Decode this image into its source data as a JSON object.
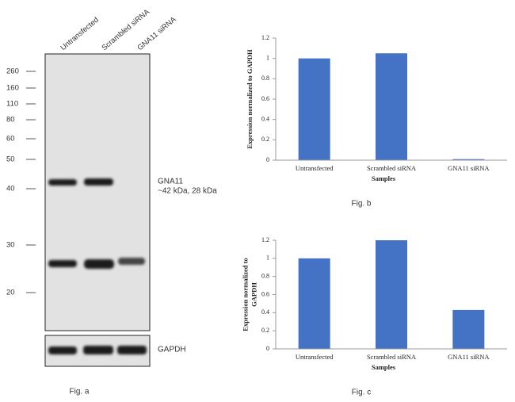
{
  "blot": {
    "lanes": [
      "Untransfected",
      "Scrambled siRNA",
      "GNA11 siRNA"
    ],
    "markers": [
      260,
      160,
      110,
      80,
      60,
      50,
      40,
      30,
      20
    ],
    "band_label": "GNA11",
    "band_size": "~42 kDa, 28 kDa",
    "control_label": "GAPDH",
    "caption": "Fig. a"
  },
  "chart_data": [
    {
      "type": "bar",
      "caption": "Fig. b",
      "ylabel": [
        "Expression  normalized to GAPDH"
      ],
      "xlabel": "Samples",
      "categories": [
        "Untransfected",
        "Scrambled siRNA",
        "GNA11 siRNA"
      ],
      "values": [
        1,
        1.05,
        0.01
      ],
      "color": "#4472c4",
      "ylim": [
        0,
        1.2
      ],
      "yticks": [
        0,
        0.2,
        0.4,
        0.6,
        0.8,
        1,
        1.2
      ]
    },
    {
      "type": "bar",
      "caption": "Fig. c",
      "ylabel": [
        "Expression  normalized to",
        "GAPDH"
      ],
      "xlabel": "Samples",
      "categories": [
        "Untransfected",
        "Scrambled siRNA",
        "GNA11 siRNA"
      ],
      "values": [
        1,
        1.2,
        0.43
      ],
      "color": "#4472c4",
      "ylim": [
        0,
        1.2
      ],
      "yticks": [
        0,
        0.2,
        0.4,
        0.6,
        0.8,
        1,
        1.2
      ]
    }
  ]
}
